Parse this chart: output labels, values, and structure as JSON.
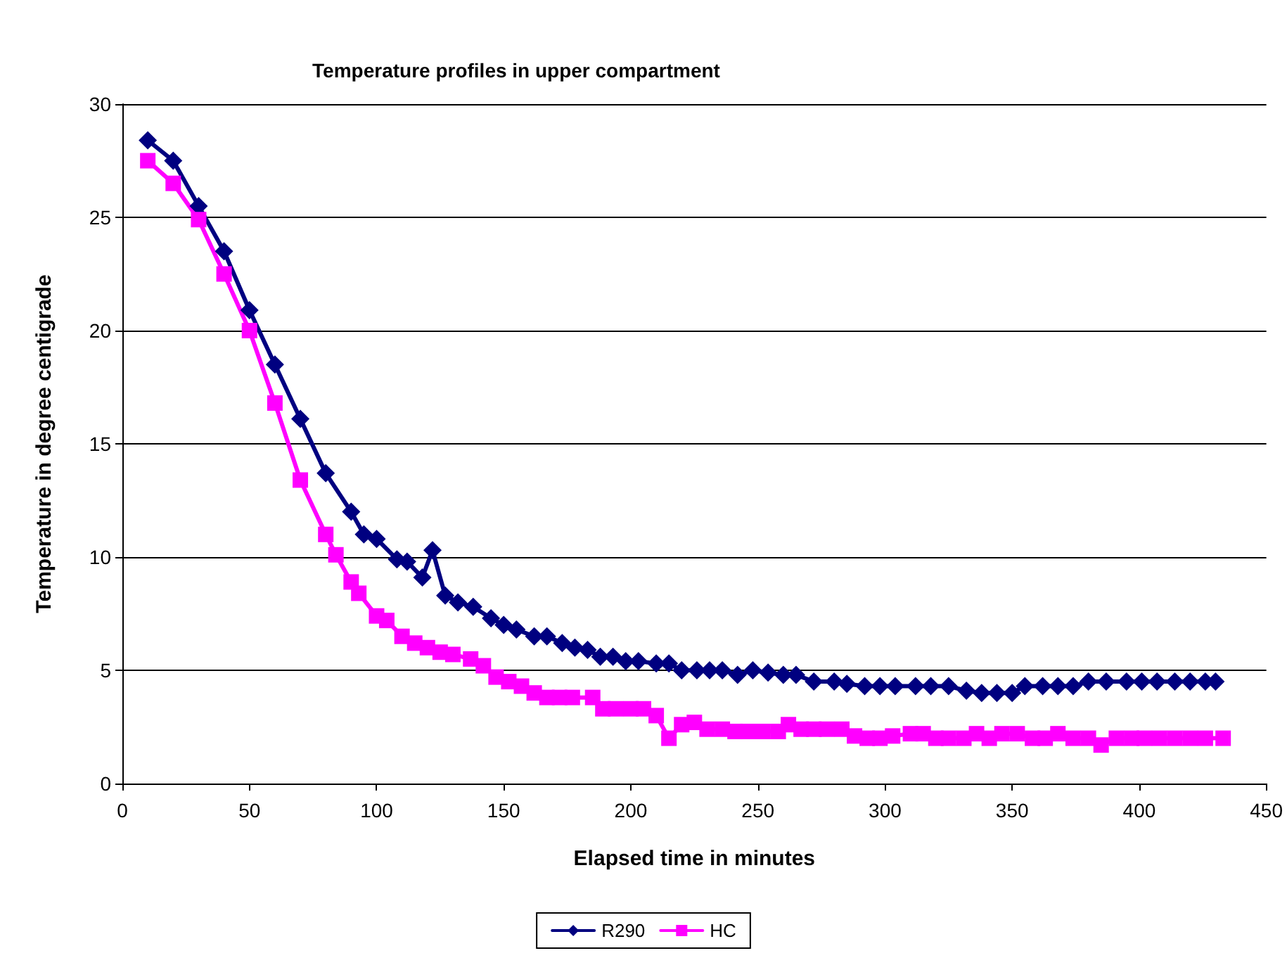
{
  "chart_data": {
    "type": "line",
    "title": "Temperature profiles in upper compartment",
    "xlabel": "Elapsed time in minutes",
    "ylabel": "Temperature in degree centigrade",
    "xlim": [
      0,
      450
    ],
    "xticks": [
      0,
      50,
      100,
      150,
      200,
      250,
      300,
      350,
      400,
      450
    ],
    "ylim": [
      0,
      30
    ],
    "yticks": [
      0,
      5,
      10,
      15,
      20,
      25,
      30
    ],
    "grid": "y",
    "legend": "bottom",
    "series": [
      {
        "name": "R290",
        "color": "#000080",
        "marker": "diamond",
        "x": [
          10,
          20,
          30,
          40,
          50,
          60,
          70,
          80,
          90,
          95,
          100,
          108,
          112,
          118,
          122,
          127,
          132,
          138,
          145,
          150,
          155,
          162,
          167,
          173,
          178,
          183,
          188,
          193,
          198,
          203,
          210,
          215,
          220,
          226,
          231,
          236,
          242,
          248,
          254,
          260,
          265,
          272,
          280,
          285,
          292,
          298,
          304,
          312,
          318,
          325,
          332,
          338,
          344,
          350,
          355,
          362,
          368,
          374,
          380,
          387,
          395,
          401,
          407,
          414,
          420,
          426,
          430
        ],
        "values": [
          28.4,
          27.5,
          25.5,
          23.5,
          20.9,
          18.5,
          16.1,
          13.7,
          12,
          11,
          10.8,
          9.9,
          9.8,
          9.1,
          10.3,
          8.3,
          8.0,
          7.8,
          7.3,
          7.0,
          6.8,
          6.5,
          6.5,
          6.2,
          6.0,
          5.9,
          5.6,
          5.6,
          5.4,
          5.4,
          5.3,
          5.3,
          5.0,
          5.0,
          5.0,
          5.0,
          4.8,
          5.0,
          4.9,
          4.8,
          4.8,
          4.5,
          4.5,
          4.4,
          4.3,
          4.3,
          4.3,
          4.3,
          4.3,
          4.3,
          4.1,
          4.0,
          4.0,
          4.0,
          4.3,
          4.3,
          4.3,
          4.3,
          4.5,
          4.5,
          4.5,
          4.5,
          4.5,
          4.5,
          4.5,
          4.5,
          4.5
        ]
      },
      {
        "name": "HC",
        "color": "#ff00ff",
        "marker": "square",
        "x": [
          10,
          20,
          30,
          40,
          50,
          60,
          70,
          80,
          84,
          90,
          93,
          100,
          104,
          110,
          115,
          120,
          125,
          130,
          137,
          142,
          147,
          152,
          157,
          162,
          167,
          172,
          177,
          185,
          189,
          194,
          200,
          205,
          210,
          215,
          220,
          225,
          230,
          236,
          241,
          246,
          252,
          258,
          262,
          267,
          272,
          277,
          283,
          288,
          293,
          298,
          303,
          310,
          315,
          320,
          325,
          331,
          336,
          341,
          346,
          352,
          358,
          363,
          368,
          374,
          380,
          385,
          391,
          397,
          402,
          408,
          414,
          420,
          426,
          433
        ],
        "values": [
          27.5,
          26.5,
          24.9,
          22.5,
          20,
          16.8,
          13.4,
          11,
          10.1,
          8.9,
          8.4,
          7.4,
          7.2,
          6.5,
          6.2,
          6.0,
          5.8,
          5.7,
          5.5,
          5.2,
          4.7,
          4.5,
          4.3,
          4.0,
          3.8,
          3.8,
          3.8,
          3.8,
          3.3,
          3.3,
          3.3,
          3.3,
          3.0,
          2.0,
          2.6,
          2.7,
          2.4,
          2.4,
          2.3,
          2.3,
          2.3,
          2.3,
          2.6,
          2.4,
          2.4,
          2.4,
          2.4,
          2.1,
          2.0,
          2.0,
          2.1,
          2.2,
          2.2,
          2.0,
          2.0,
          2.0,
          2.2,
          2.0,
          2.2,
          2.2,
          2.0,
          2.0,
          2.2,
          2.0,
          2.0,
          1.7,
          2.0,
          2.0,
          2.0,
          2.0,
          2.0,
          2.0,
          2.0,
          2.0
        ]
      }
    ]
  }
}
